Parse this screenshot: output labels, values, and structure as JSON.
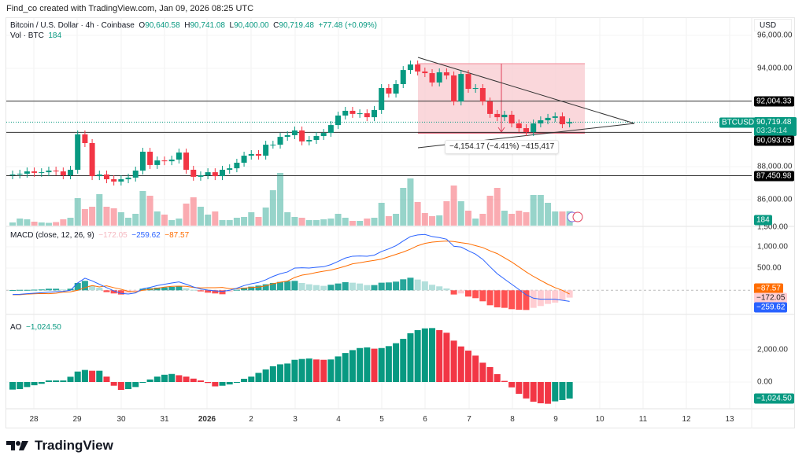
{
  "caption": "Find_co created with TradingView.com, Jan 09, 2026 08:25 UTC",
  "legend": {
    "symbol": "Bitcoin / U.S. Dollar · 4h · Coinbase",
    "o_label": "O",
    "o": "90,640.58",
    "h_label": "H",
    "h": "90,741.08",
    "l_label": "L",
    "l": "90,400.00",
    "c_label": "C",
    "c": "90,719.48",
    "change": "+77.48 (+0.09%)",
    "vol_label": "Vol · BTC",
    "vol": "184"
  },
  "currency": "USD",
  "measure_label": "−4,154.17 (−4.41%) −415,417",
  "price_axis": {
    "ticks": [
      "96,000.00",
      "94,000.00",
      "88,000.00",
      "86,000.00"
    ],
    "hlines": [
      "92,004.33",
      "90,093.05",
      "87,450.98"
    ],
    "symbol_tag": "BTCUSD",
    "last_price": "90,719.48",
    "countdown": "03:34:14",
    "vol_tag": "184"
  },
  "macd": {
    "title": "MACD (close, 12, 26, 9)",
    "hist_value": "−172.05",
    "macd_value": "−259.62",
    "signal_value": "−87.57",
    "ticks": [
      "1,500.00",
      "1,000.00",
      "500.00"
    ]
  },
  "ao": {
    "title": "AO",
    "value": "−1,024.50",
    "ticks": [
      "2,000.00",
      "0.00"
    ]
  },
  "time_axis": [
    "28",
    "29",
    "30",
    "31",
    "2026",
    "2",
    "3",
    "4",
    "5",
    "6",
    "7",
    "8",
    "9",
    "10",
    "11",
    "12",
    "13"
  ],
  "logo_text": "TradingView",
  "colors": {
    "up": "#089981",
    "down": "#F23645",
    "macd_line": "#2962FF",
    "signal_line": "#FF6D00",
    "hist_up_strong": "#26A69A",
    "hist_up_weak": "#B2DFDB",
    "hist_down_strong": "#FF5252",
    "hist_down_weak": "#FFCDD2",
    "zone_fill": "#F8C9CF"
  },
  "chart_data": [
    {
      "type": "candlestick",
      "title": "Bitcoin / U.S. Dollar · 4h · Coinbase",
      "interval": "4h",
      "x_range": [
        "Dec 27, 2025 12:00",
        "Jan 09, 2026 08:00"
      ],
      "ylim": [
        85000,
        96500
      ],
      "grid": true,
      "open": [
        87470,
        87520,
        87570,
        87710,
        87620,
        87660,
        87760,
        87710,
        87470,
        87810,
        89970,
        89440,
        87420,
        87520,
        87230,
        87090,
        87230,
        87330,
        87760,
        88910,
        88100,
        88380,
        88330,
        88430,
        88860,
        87810,
        87380,
        87470,
        87660,
        87420,
        87810,
        87900,
        88240,
        88670,
        88770,
        88670,
        89340,
        89340,
        89820,
        89920,
        90210,
        89540,
        89630,
        89870,
        90060,
        90540,
        91120,
        91410,
        91220,
        91260,
        91020,
        91460,
        92800,
        92460,
        93040,
        93900,
        94240,
        93810,
        93710,
        93140,
        93760,
        93570,
        91980,
        93660,
        92750,
        92800,
        91980,
        91220,
        91020,
        91170,
        90640,
        90350,
        90110,
        90640,
        90830,
        90980,
        91070,
        90640.58
      ],
      "close": [
        87520,
        87570,
        87710,
        87620,
        87660,
        87760,
        87710,
        87470,
        87810,
        89970,
        89440,
        87420,
        87520,
        87230,
        87090,
        87230,
        87330,
        87760,
        88910,
        88100,
        88380,
        88330,
        88430,
        88860,
        87810,
        87380,
        87470,
        87660,
        87420,
        87810,
        87900,
        88240,
        88670,
        88770,
        88670,
        89340,
        89340,
        89820,
        89920,
        90210,
        89540,
        89630,
        89870,
        90060,
        90540,
        91120,
        91410,
        91220,
        91260,
        91020,
        91460,
        92800,
        92460,
        93040,
        93900,
        94240,
        93810,
        93710,
        93140,
        93760,
        93570,
        91980,
        93660,
        92750,
        92800,
        91980,
        91220,
        91020,
        91170,
        90640,
        90350,
        90110,
        90640,
        90830,
        90980,
        91070,
        90590,
        90719.48
      ],
      "last": {
        "open": 90640.58,
        "high": 90741.08,
        "low": 90400.0,
        "close": 90719.48
      },
      "volume": [
        40,
        90,
        80,
        50,
        40,
        35,
        45,
        80,
        100,
        350,
        210,
        240,
        400,
        240,
        220,
        170,
        100,
        150,
        440,
        380,
        180,
        140,
        70,
        90,
        280,
        360,
        240,
        140,
        180,
        70,
        70,
        100,
        110,
        170,
        110,
        230,
        450,
        670,
        170,
        110,
        100,
        70,
        70,
        80,
        90,
        150,
        100,
        60,
        60,
        90,
        100,
        290,
        120,
        150,
        480,
        600,
        300,
        160,
        120,
        130,
        310,
        510,
        310,
        190,
        90,
        150,
        380,
        480,
        190,
        150,
        190,
        170,
        390,
        390,
        290,
        180,
        180,
        184
      ],
      "horizontal_levels": [
        92004.33,
        90093.05,
        87450.98
      ],
      "annotation": "−4,154.17 (−4.41%) −415,417"
    },
    {
      "type": "bar+line",
      "title": "MACD (close, 12, 26, 9)",
      "ylim": [
        -600,
        1500
      ],
      "histogram": [
        5,
        10,
        10,
        15,
        20,
        37,
        37,
        18,
        37,
        173,
        222,
        111,
        62,
        -43,
        -74,
        -99,
        -62,
        -25,
        37,
        49,
        62,
        68,
        80,
        99,
        49,
        12,
        -25,
        -56,
        -74,
        -93,
        -37,
        12,
        62,
        86,
        111,
        142,
        173,
        197,
        216,
        222,
        173,
        142,
        123,
        105,
        130,
        160,
        191,
        179,
        160,
        123,
        123,
        179,
        185,
        204,
        259,
        296,
        253,
        210,
        130,
        93,
        43,
        -99,
        -74,
        -148,
        -185,
        -259,
        -352,
        -401,
        -413,
        -444,
        -457,
        -463,
        -413,
        -370,
        -321,
        -290,
        -234,
        -172.05
      ],
      "macd": [
        -99,
        -93,
        -80,
        -68,
        -56,
        -43,
        -31,
        -25,
        0,
        173,
        284,
        222,
        142,
        62,
        -12,
        -74,
        -86,
        -62,
        37,
        68,
        111,
        142,
        173,
        197,
        142,
        80,
        31,
        6,
        -12,
        -25,
        0,
        49,
        111,
        154,
        185,
        247,
        327,
        390,
        432,
        524,
        530,
        524,
        543,
        555,
        605,
        679,
        759,
        802,
        808,
        802,
        827,
        913,
        975,
        1049,
        1160,
        1265,
        1302,
        1314,
        1265,
        1240,
        1203,
        1036,
        1018,
        932,
        851,
        728,
        555,
        389,
        265,
        142,
        19,
        -105,
        -185,
        -210,
        -210,
        -210,
        -234,
        -259.62
      ],
      "signal": [
        -104,
        -103,
        -90,
        -83,
        -76,
        -80,
        -68,
        -43,
        -37,
        0,
        62,
        111,
        80,
        105,
        62,
        25,
        -24,
        -37,
        0,
        19,
        49,
        74,
        93,
        98,
        93,
        68,
        56,
        62,
        62,
        68,
        37,
        37,
        49,
        68,
        74,
        105,
        154,
        190,
        216,
        302,
        357,
        382,
        420,
        450,
        475,
        519,
        568,
        623,
        648,
        679,
        704,
        734,
        790,
        845,
        901,
        969,
        1049,
        1104,
        1135,
        1147,
        1160,
        1148,
        1120,
        1098,
        1050,
        1006,
        930,
        864,
        765,
        666,
        550,
        432,
        327,
        234,
        142,
        62,
        0,
        -87.57
      ]
    },
    {
      "type": "bar",
      "title": "AO",
      "ylim": [
        -1700,
        3600
      ],
      "values": [
        -470,
        -440,
        -310,
        -200,
        -110,
        100,
        100,
        100,
        330,
        650,
        750,
        700,
        700,
        340,
        -230,
        -490,
        -440,
        -310,
        -20,
        160,
        340,
        450,
        500,
        420,
        340,
        210,
        100,
        -60,
        -270,
        -230,
        -150,
        -20,
        200,
        340,
        570,
        780,
        980,
        1100,
        1150,
        1380,
        1430,
        1460,
        1400,
        1380,
        1400,
        1590,
        1800,
        1980,
        2110,
        2150,
        2070,
        2110,
        2230,
        2410,
        2680,
        3030,
        3220,
        3330,
        3350,
        3220,
        3060,
        2570,
        2210,
        1950,
        1640,
        1200,
        930,
        490,
        70,
        -330,
        -730,
        -1020,
        -1220,
        -1320,
        -1350,
        -1200,
        -1120,
        -1024.5
      ]
    }
  ]
}
